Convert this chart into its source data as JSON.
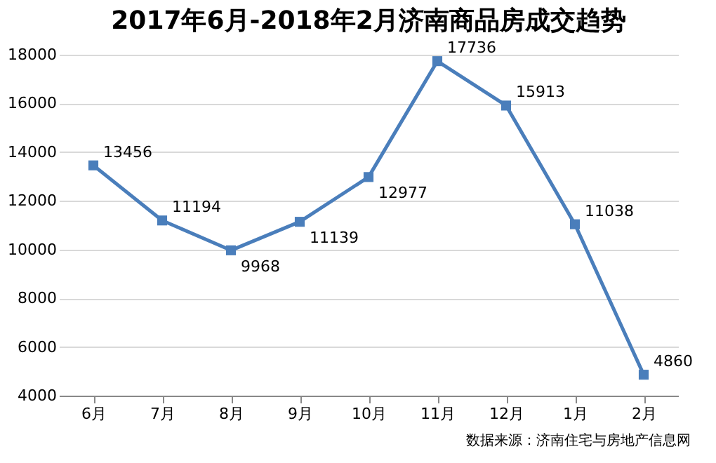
{
  "chart_data": {
    "type": "line",
    "title": "2017年6月-2018年2月济南商品房成交趋势",
    "categories": [
      "6月",
      "7月",
      "8月",
      "9月",
      "10月",
      "11月",
      "12月",
      "1月",
      "2月"
    ],
    "series": [
      {
        "color": "#4a7ebb",
        "values": [
          13456,
          11194,
          9968,
          11139,
          12977,
          17736,
          15913,
          11038,
          4860
        ]
      }
    ],
    "ylim": [
      4000,
      18000
    ],
    "yticks": [
      4000,
      6000,
      8000,
      10000,
      12000,
      14000,
      16000,
      18000
    ],
    "grid": "y",
    "marker": "square",
    "line_style": "solid",
    "data_labels": true,
    "legend": false,
    "annotations": [
      "数据来源：济南住宅与房地产信息网"
    ]
  }
}
